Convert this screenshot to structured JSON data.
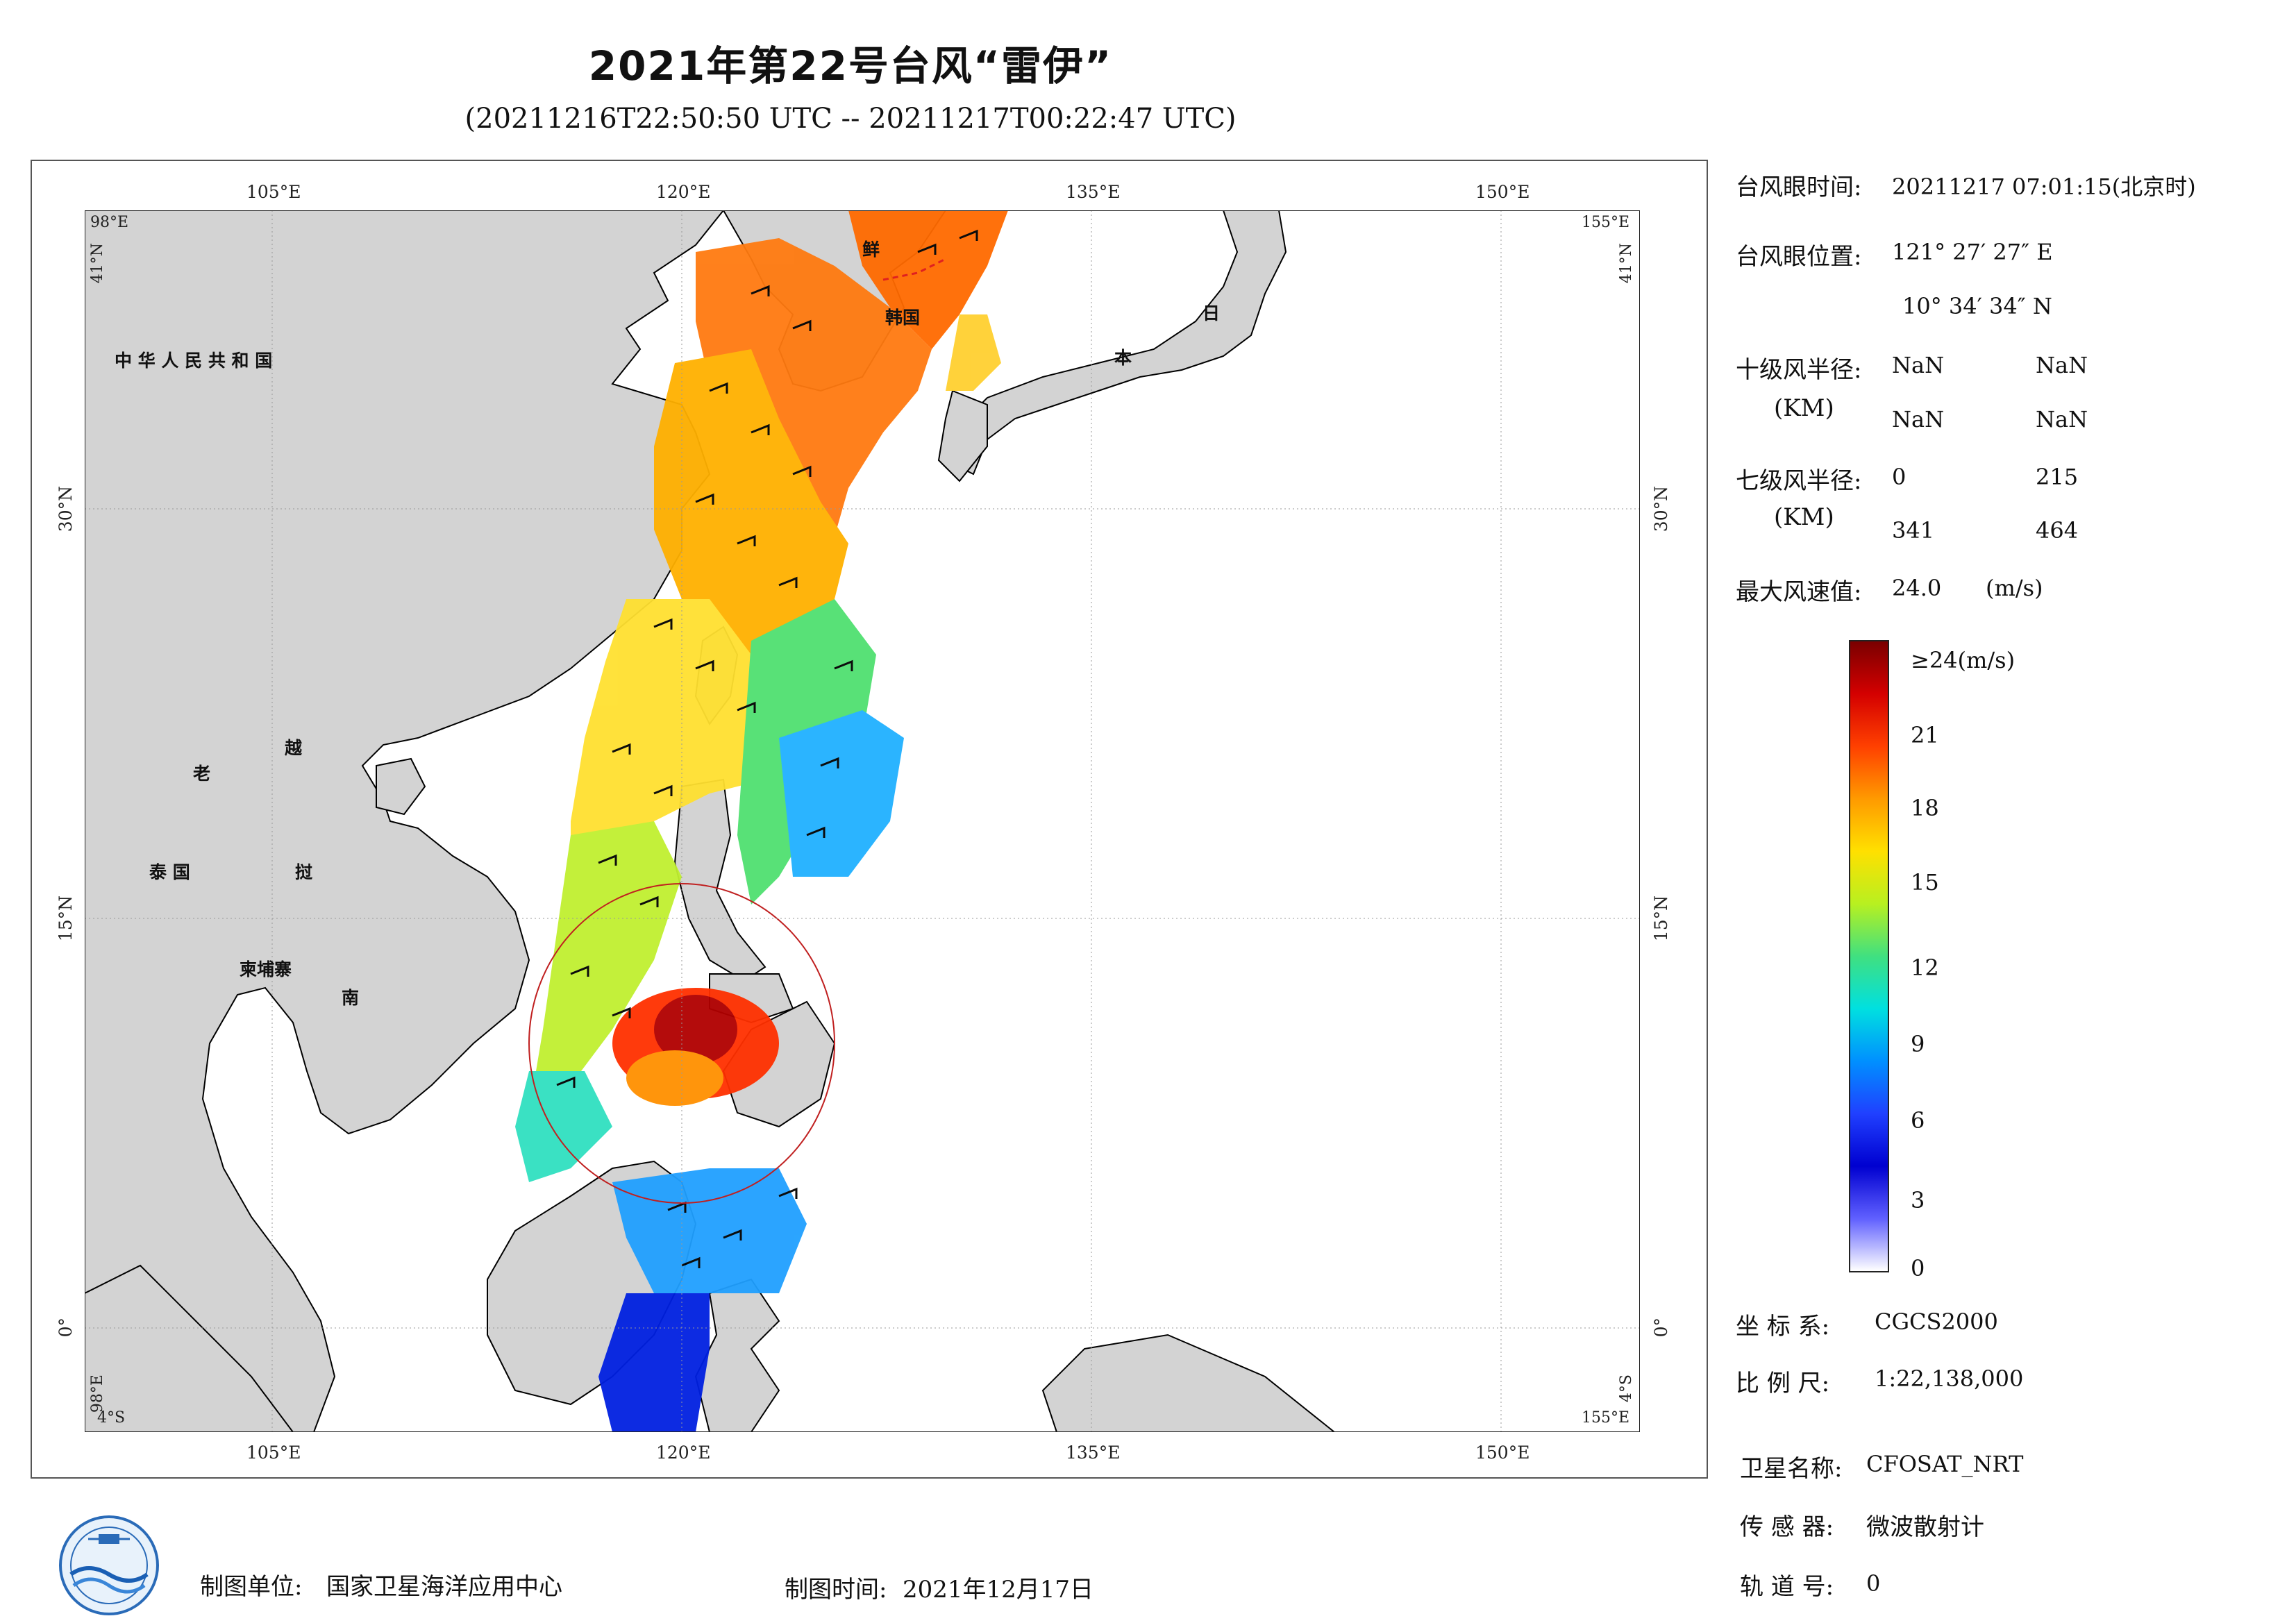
{
  "title": "2021年第22号台风“雷伊”",
  "subtitle": "(20211216T22:50:50 UTC -- 20211217T00:22:47 UTC)",
  "map": {
    "lon_ticks": [
      "105°E",
      "120°E",
      "135°E",
      "150°E"
    ],
    "lat_ticks": [
      "30°N",
      "15°N",
      "0°"
    ],
    "corners": {
      "tl_lon": "98°E",
      "tl_lat": "41°N",
      "tr_lon": "155°E",
      "tr_lat": "41°N",
      "bl_lon": "98°E",
      "bl_lat": "4°S",
      "br_lon": "155°E",
      "br_lat": "4°S"
    },
    "places": {
      "china": "中 华 人 民 共 和 国",
      "laos": "老",
      "vietnam_1": "越",
      "vietnam_2": "南",
      "thailand": "泰  国",
      "cambodia": "柬埔寨",
      "vietnam_mid": "挝",
      "korea_north": "鲜",
      "korea_south": "韩国",
      "japan_1": "日",
      "japan_2": "本"
    },
    "land_color": "#d3d3d3",
    "sea_color": "#ffffff"
  },
  "info": {
    "eye_time_label": "台风眼时间:",
    "eye_time_value": "20211217 07:01:15(北京时)",
    "eye_pos_label": "台风眼位置:",
    "eye_lon": "121° 27′ 27″ E",
    "eye_lat": "10° 34′ 34″ N",
    "r10_label": "十级风半径:",
    "r10_unit": "(KM)",
    "r10_values": [
      "NaN",
      "NaN",
      "NaN",
      "NaN"
    ],
    "r7_label": "七级风半径:",
    "r7_unit": "(KM)",
    "r7_values": [
      "0",
      "215",
      "341",
      "464"
    ],
    "vmax_label": "最大风速值:",
    "vmax_value": "24.0",
    "vmax_unit": "(m/s)"
  },
  "colorbar": {
    "labels": [
      "≥24(m/s)",
      "21",
      "18",
      "15",
      "12",
      "9",
      "6",
      "3",
      "0"
    ],
    "stops": [
      "#7a0000",
      "#d40000",
      "#ff4000",
      "#ff9a00",
      "#ffe000",
      "#b8f020",
      "#40e080",
      "#00e0e0",
      "#0090ff",
      "#2040ff",
      "#0000d0",
      "#6060ff",
      "#ffffff"
    ]
  },
  "meta": {
    "coord_label": "坐 标 系:",
    "coord_value": "CGCS2000",
    "scale_label": "比 例 尺:",
    "scale_value": "1:22,138,000",
    "sat_label": "卫星名称:",
    "sat_value": "CFOSAT_NRT",
    "sensor_label": "传 感 器:",
    "sensor_value": "微波散射计",
    "orbit_label": "轨 道 号:",
    "orbit_value": "0"
  },
  "footer": {
    "unit_label": "制图单位:",
    "unit_value": "国家卫星海洋应用中心",
    "time_label": "制图时间:",
    "time_value": "2021年12月17日"
  }
}
